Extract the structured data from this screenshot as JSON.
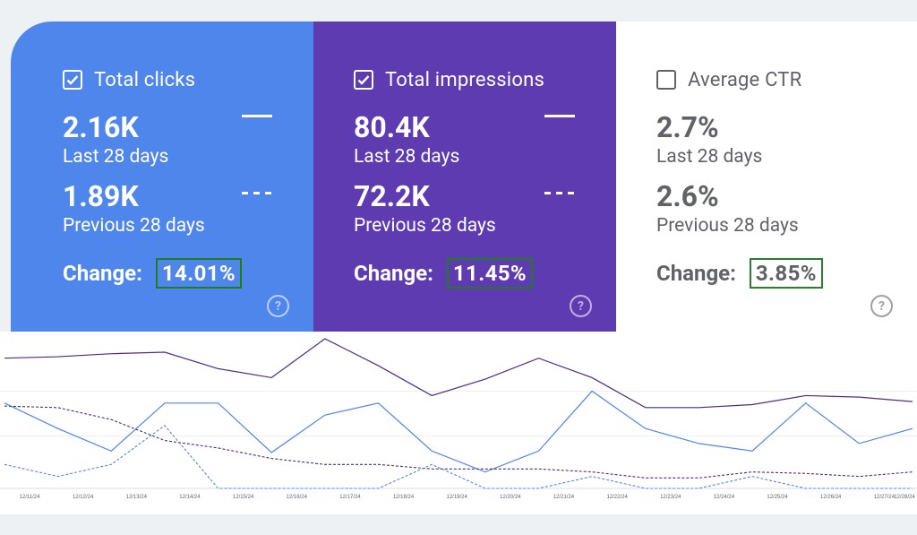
{
  "cards": [
    {
      "id": "clicks",
      "checked": true,
      "title": "Total clicks",
      "current_value": "2.16K",
      "current_label": "Last 28 days",
      "previous_value": "1.89K",
      "previous_label": "Previous 28 days",
      "change_label": "Change:",
      "change_value": "14.01%",
      "bg_color": "#4f86ec"
    },
    {
      "id": "impressions",
      "checked": true,
      "title": "Total impressions",
      "current_value": "80.4K",
      "current_label": "Last 28 days",
      "previous_value": "72.2K",
      "previous_label": "Previous 28 days",
      "change_label": "Change:",
      "change_value": "11.45%",
      "bg_color": "#5f3bb1"
    },
    {
      "id": "ctr",
      "checked": false,
      "title": "Average CTR",
      "current_value": "2.7%",
      "current_label": "Last 28 days",
      "previous_value": "2.6%",
      "previous_label": "Previous 28 days",
      "change_label": "Change:",
      "change_value": "3.85%",
      "bg_color": "#ffffff"
    }
  ],
  "help_glyph": "?",
  "chart_data": {
    "type": "line",
    "categories": [
      "12/11/24",
      "12/12/24",
      "12/13/24",
      "12/14/24",
      "12/15/24",
      "12/16/24",
      "12/17/24",
      "12/18/24",
      "12/19/24",
      "12/20/24",
      "12/21/24",
      "12/22/24",
      "12/23/24",
      "12/24/24",
      "12/25/24",
      "12/26/24",
      "12/27/24",
      "12/28/24"
    ],
    "ylim": [
      0,
      100
    ],
    "series": [
      {
        "key": "impressions_current",
        "color": "#4b2a8c",
        "dashed": false,
        "values": [
          87,
          88,
          90,
          91,
          80,
          74,
          100,
          82,
          62,
          73,
          87,
          74,
          54,
          54,
          56,
          62,
          61,
          58
        ]
      },
      {
        "key": "clicks_current",
        "color": "#4f86ec",
        "dashed": false,
        "values": [
          57,
          40,
          25,
          57,
          57,
          24,
          49,
          57,
          25,
          11,
          25,
          65,
          40,
          30,
          25,
          57,
          30,
          40
        ]
      },
      {
        "key": "impressions_previous",
        "color": "#4b2a8c",
        "dashed": true,
        "values": [
          55,
          54,
          46,
          32,
          27,
          20,
          16,
          16,
          13,
          13,
          13,
          11,
          7,
          7,
          11,
          10,
          8,
          11
        ]
      },
      {
        "key": "clicks_previous",
        "color": "#4f86ec",
        "dashed": true,
        "values": [
          16,
          8,
          16,
          42,
          0,
          0,
          0,
          0,
          16,
          0,
          0,
          8,
          0,
          0,
          8,
          0,
          0,
          0
        ]
      }
    ],
    "grid": true
  }
}
